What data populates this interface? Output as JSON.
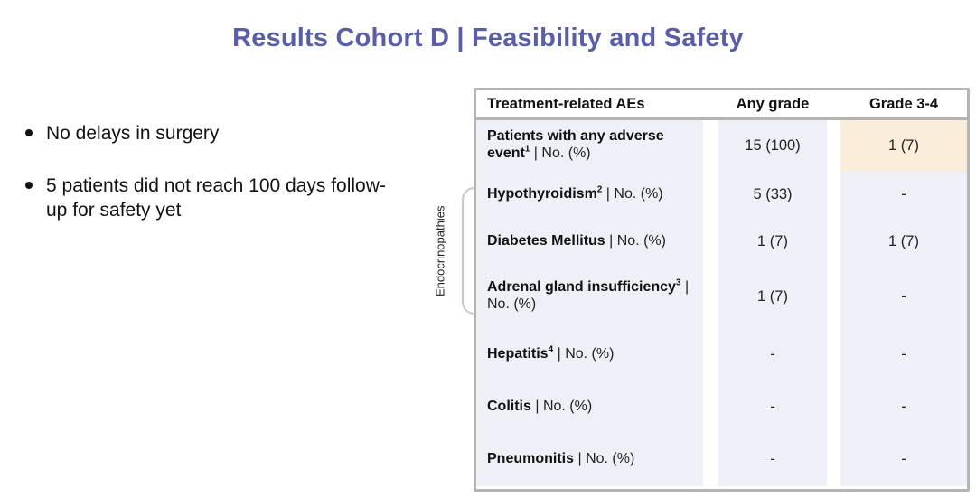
{
  "title": "Results Cohort D | Feasibility and Safety",
  "bullets": [
    "No delays in surgery",
    "5 patients did not reach 100 days follow-up for safety yet"
  ],
  "table": {
    "group_label": "Endocrinopathies",
    "headers": [
      "Treatment-related AEs",
      "Any grade",
      "Grade 3-4"
    ],
    "rows": [
      {
        "label": "Patients with any adverse event",
        "sup": "1",
        "suffix": " | No. (%)",
        "any_grade": "15 (100)",
        "grade34": "1 (7)"
      },
      {
        "label": "Hypothyroidism",
        "sup": "2",
        "suffix": " | No. (%)",
        "any_grade": "5 (33)",
        "grade34": "-"
      },
      {
        "label": "Diabetes Mellitus",
        "sup": "",
        "suffix": " | No. (%)",
        "any_grade": "1 (7)",
        "grade34": "1 (7)"
      },
      {
        "label": "Adrenal gland insufficiency",
        "sup": "3",
        "suffix": " | No. (%)",
        "any_grade": "1 (7)",
        "grade34": "-"
      },
      {
        "label": "Hepatitis",
        "sup": "4",
        "suffix": " | No. (%)",
        "any_grade": "-",
        "grade34": "-"
      },
      {
        "label": "Colitis",
        "sup": "",
        "suffix": " | No. (%)",
        "any_grade": "-",
        "grade34": "-"
      },
      {
        "label": "Pneumonitis",
        "sup": "",
        "suffix": " | No. (%)",
        "any_grade": "-",
        "grade34": "-"
      }
    ]
  },
  "colors": {
    "title": "#5a5ea6",
    "table_border": "#b4b4b4",
    "table_body_bg": "#edf1f7",
    "highlight_cell": "#faeedb",
    "bracket": "#c9c9c9"
  }
}
